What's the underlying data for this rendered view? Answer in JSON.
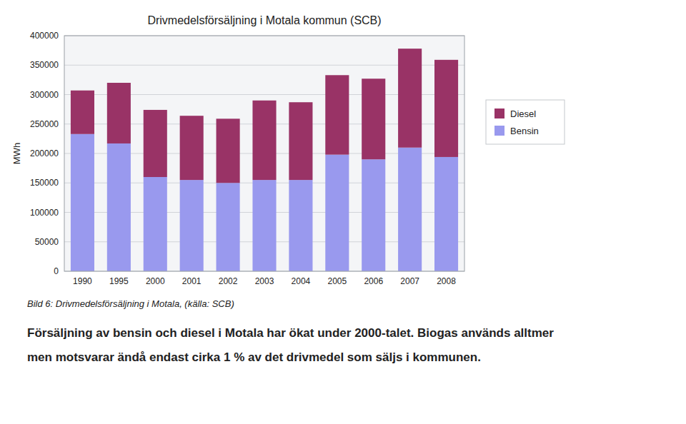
{
  "chart_data": {
    "type": "bar",
    "stacked": true,
    "title": "Drivmedelsförsäljning i Motala kommun (SCB)",
    "ylabel": "MWh",
    "categories": [
      "1990",
      "1995",
      "2000",
      "2001",
      "2002",
      "2003",
      "2004",
      "2005",
      "2006",
      "2007",
      "2008"
    ],
    "series": [
      {
        "name": "Bensin",
        "color": "#9999ee",
        "values": [
          233000,
          217000,
          160000,
          155000,
          150000,
          155000,
          155000,
          198000,
          190000,
          210000,
          194000
        ]
      },
      {
        "name": "Diesel",
        "color": "#993366",
        "values": [
          74000,
          103000,
          114000,
          109000,
          109000,
          135000,
          132000,
          135000,
          137000,
          168000,
          165000
        ]
      }
    ],
    "ylim": [
      0,
      400000
    ],
    "yticks": [
      0,
      50000,
      100000,
      150000,
      200000,
      250000,
      300000,
      350000,
      400000
    ],
    "grid": true,
    "legend": "right",
    "annotations": [
      "Bild 6: Drivmedelsförsäljning i Motala, (källa: SCB)",
      "Försäljning av bensin och diesel i Motala har ökat under 2000-talet. Biogas används alltmer",
      "men motsvarar ändå endast cirka 1 % av det drivmedel som säljs i kommunen."
    ]
  }
}
